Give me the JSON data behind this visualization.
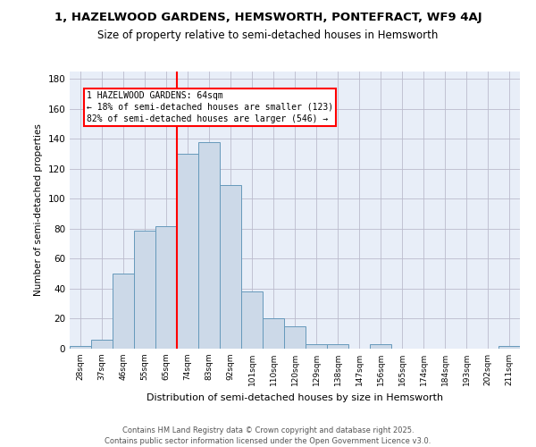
{
  "title": "1, HAZELWOOD GARDENS, HEMSWORTH, PONTEFRACT, WF9 4AJ",
  "subtitle": "Size of property relative to semi-detached houses in Hemsworth",
  "xlabel": "Distribution of semi-detached houses by size in Hemsworth",
  "ylabel": "Number of semi-detached properties",
  "bar_color": "#ccd9e8",
  "bar_edge_color": "#6699bb",
  "bg_color": "#e8eef8",
  "grid_color": "#bbbbcc",
  "categories": [
    "28sqm",
    "37sqm",
    "46sqm",
    "55sqm",
    "65sqm",
    "74sqm",
    "83sqm",
    "92sqm",
    "101sqm",
    "110sqm",
    "120sqm",
    "129sqm",
    "138sqm",
    "147sqm",
    "156sqm",
    "165sqm",
    "174sqm",
    "184sqm",
    "193sqm",
    "202sqm",
    "211sqm"
  ],
  "values": [
    2,
    6,
    50,
    79,
    82,
    130,
    138,
    109,
    38,
    20,
    15,
    3,
    3,
    0,
    3,
    0,
    0,
    0,
    0,
    0,
    2
  ],
  "annotation_text_line1": "1 HAZELWOOD GARDENS: 64sqm",
  "annotation_text_line2": "← 18% of semi-detached houses are smaller (123)",
  "annotation_text_line3": "82% of semi-detached houses are larger (546) →",
  "footer1": "Contains HM Land Registry data © Crown copyright and database right 2025.",
  "footer2": "Contains public sector information licensed under the Open Government Licence v3.0.",
  "ylim": [
    0,
    185
  ],
  "yticks": [
    0,
    20,
    40,
    60,
    80,
    100,
    120,
    140,
    160,
    180
  ],
  "vline_x": 4.5
}
